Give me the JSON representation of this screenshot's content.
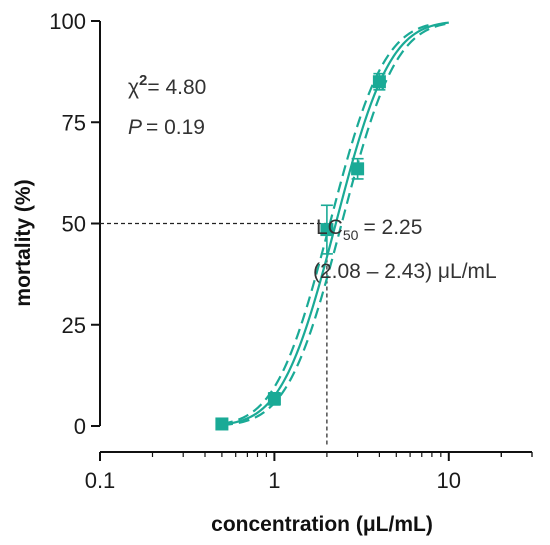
{
  "chart_data": {
    "type": "scatter",
    "xscale": "log",
    "xlabel": "concentration (μL/mL)",
    "ylabel": "mortality (%)",
    "xlim": [
      0.1,
      30
    ],
    "ylim": [
      0,
      100
    ],
    "xticks": [
      0.1,
      1,
      10
    ],
    "xtick_labels": [
      "0.1",
      "1",
      "10"
    ],
    "yticks": [
      0,
      25,
      50,
      75,
      100
    ],
    "ytick_labels": [
      "0",
      "25",
      "50",
      "75",
      "100"
    ],
    "grid": false,
    "series": [
      {
        "kind": "points",
        "x": [
          0.5,
          1.0,
          2.0,
          3.0,
          4.0
        ],
        "y": [
          0.5,
          6.7,
          48.5,
          63.5,
          85.0
        ],
        "err": [
          0.8,
          1.5,
          6.0,
          2.5,
          2.0
        ]
      },
      {
        "kind": "fit",
        "style": "solid",
        "model": "probit",
        "lc50": 2.25,
        "slope": 4.1,
        "xrange": [
          0.5,
          10
        ]
      },
      {
        "kind": "ci_lower",
        "style": "dashed",
        "model": "probit",
        "lc50": 2.43,
        "slope": 4.1,
        "xrange": [
          0.5,
          10
        ]
      },
      {
        "kind": "ci_upper",
        "style": "dashed",
        "model": "probit",
        "lc50": 2.08,
        "slope": 4.1,
        "xrange": [
          0.5,
          8
        ]
      }
    ],
    "reference_lines": {
      "x": 2.0,
      "y": 50
    },
    "annotations": {
      "chi_symbol": "χ",
      "chi_exp": "2",
      "chi_value": "= 4.80",
      "p_symbol": "P",
      "p_value": "= 0.19",
      "lc_text": "LC",
      "lc_sub": "50",
      "lc_value": "= 2.25",
      "lc_ci": "(2.08 – 2.43) μL/mL"
    },
    "colors": {
      "curve": "#1aaa96",
      "axis": "#111111",
      "reference": "#222222"
    }
  }
}
